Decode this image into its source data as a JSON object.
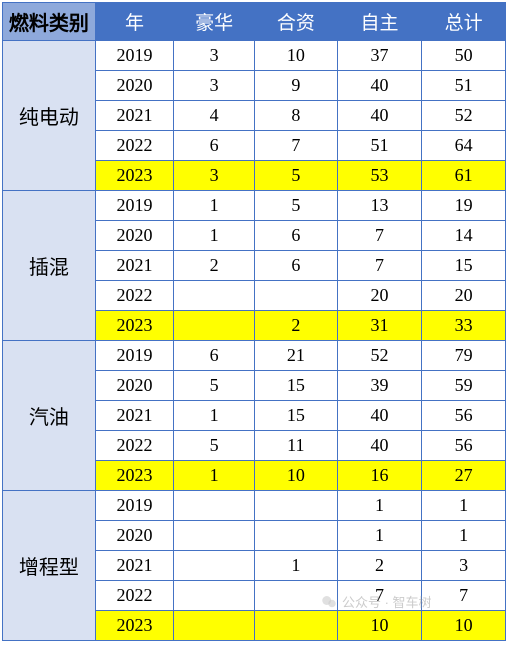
{
  "headers": {
    "category": "燃料类别",
    "year": "年",
    "luxury": "豪华",
    "jv": "合资",
    "own": "自主",
    "total": "总计"
  },
  "groups": [
    {
      "name": "纯电动",
      "rows": [
        {
          "year": "2019",
          "lux": "3",
          "jv": "10",
          "own": "37",
          "tot": "50",
          "hl": false
        },
        {
          "year": "2020",
          "lux": "3",
          "jv": "9",
          "own": "40",
          "tot": "51",
          "hl": false
        },
        {
          "year": "2021",
          "lux": "4",
          "jv": "8",
          "own": "40",
          "tot": "52",
          "hl": false
        },
        {
          "year": "2022",
          "lux": "6",
          "jv": "7",
          "own": "51",
          "tot": "64",
          "hl": false
        },
        {
          "year": "2023",
          "lux": "3",
          "jv": "5",
          "own": "53",
          "tot": "61",
          "hl": true
        }
      ]
    },
    {
      "name": "插混",
      "rows": [
        {
          "year": "2019",
          "lux": "1",
          "jv": "5",
          "own": "13",
          "tot": "19",
          "hl": false
        },
        {
          "year": "2020",
          "lux": "1",
          "jv": "6",
          "own": "7",
          "tot": "14",
          "hl": false
        },
        {
          "year": "2021",
          "lux": "2",
          "jv": "6",
          "own": "7",
          "tot": "15",
          "hl": false
        },
        {
          "year": "2022",
          "lux": "",
          "jv": "",
          "own": "20",
          "tot": "20",
          "hl": false
        },
        {
          "year": "2023",
          "lux": "",
          "jv": "2",
          "own": "31",
          "tot": "33",
          "hl": true
        }
      ]
    },
    {
      "name": "汽油",
      "rows": [
        {
          "year": "2019",
          "lux": "6",
          "jv": "21",
          "own": "52",
          "tot": "79",
          "hl": false
        },
        {
          "year": "2020",
          "lux": "5",
          "jv": "15",
          "own": "39",
          "tot": "59",
          "hl": false
        },
        {
          "year": "2021",
          "lux": "1",
          "jv": "15",
          "own": "40",
          "tot": "56",
          "hl": false
        },
        {
          "year": "2022",
          "lux": "5",
          "jv": "11",
          "own": "40",
          "tot": "56",
          "hl": false
        },
        {
          "year": "2023",
          "lux": "1",
          "jv": "10",
          "own": "16",
          "tot": "27",
          "hl": true
        }
      ]
    },
    {
      "name": "增程型",
      "rows": [
        {
          "year": "2019",
          "lux": "",
          "jv": "",
          "own": "1",
          "tot": "1",
          "hl": false
        },
        {
          "year": "2020",
          "lux": "",
          "jv": "",
          "own": "1",
          "tot": "1",
          "hl": false
        },
        {
          "year": "2021",
          "lux": "",
          "jv": "1",
          "own": "2",
          "tot": "3",
          "hl": false
        },
        {
          "year": "2022",
          "lux": "",
          "jv": "",
          "own": "7",
          "tot": "7",
          "hl": false
        },
        {
          "year": "2023",
          "lux": "",
          "jv": "",
          "own": "10",
          "tot": "10",
          "hl": true
        }
      ]
    }
  ],
  "watermark": "公众号 · 智车树",
  "styling": {
    "header_bg": "#4472c4",
    "header_fg": "#ffffff",
    "category_header_bg": "#8ea9db",
    "category_cell_bg": "#d9e1f2",
    "highlight_bg": "#ffff00",
    "border_color": "#4472c4",
    "font_family": "SimSun",
    "base_font_size": 18,
    "header_font_size": 19,
    "category_font_size": 20
  }
}
